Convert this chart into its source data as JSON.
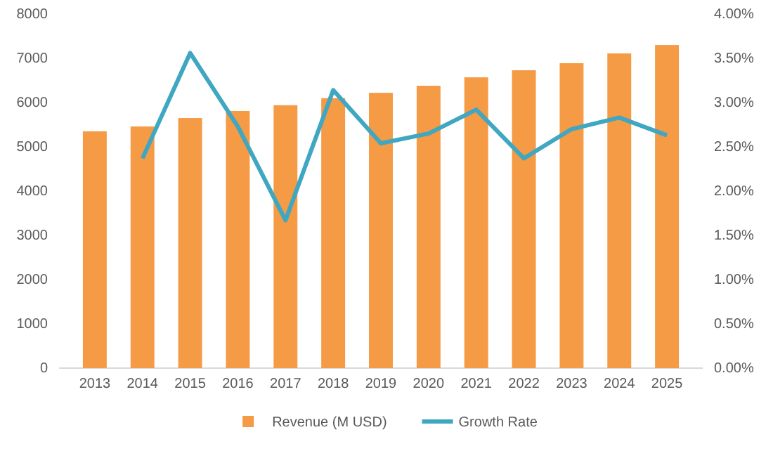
{
  "chart_data": {
    "type": "bar",
    "categories": [
      "2013",
      "2014",
      "2015",
      "2016",
      "2017",
      "2018",
      "2019",
      "2020",
      "2021",
      "2022",
      "2023",
      "2024",
      "2025"
    ],
    "series": [
      {
        "name": "Revenue (M USD)",
        "color": "#f59a45",
        "values": [
          5350,
          5460,
          5650,
          5810,
          5940,
          6100,
          6220,
          6380,
          6570,
          6730,
          6890,
          7110,
          7300
        ]
      },
      {
        "name": "Growth Rate",
        "type": "line",
        "axis": "y2",
        "color": "#3fa7c1",
        "values": [
          null,
          2.37,
          3.56,
          2.73,
          1.67,
          3.14,
          2.54,
          2.65,
          2.92,
          2.37,
          2.7,
          2.83,
          2.63
        ]
      }
    ],
    "ylim": [
      0,
      8000
    ],
    "yticks": [
      0,
      1000,
      2000,
      3000,
      4000,
      5000,
      6000,
      7000,
      8000
    ],
    "y2lim": [
      0,
      4
    ],
    "y2ticks": [
      {
        "value": 0,
        "label": "0.00%"
      },
      {
        "value": 0.5,
        "label": "0.50%"
      },
      {
        "value": 1,
        "label": "1.00%"
      },
      {
        "value": 1.5,
        "label": "1.50%"
      },
      {
        "value": 2,
        "label": "2.00%"
      },
      {
        "value": 2.5,
        "label": "2.50%"
      },
      {
        "value": 3,
        "label": "3.00%"
      },
      {
        "value": 3.5,
        "label": "3.50%"
      },
      {
        "value": 4,
        "label": "4.00%"
      }
    ],
    "legend": "bottom",
    "marker": "none",
    "line_style": "solid"
  }
}
